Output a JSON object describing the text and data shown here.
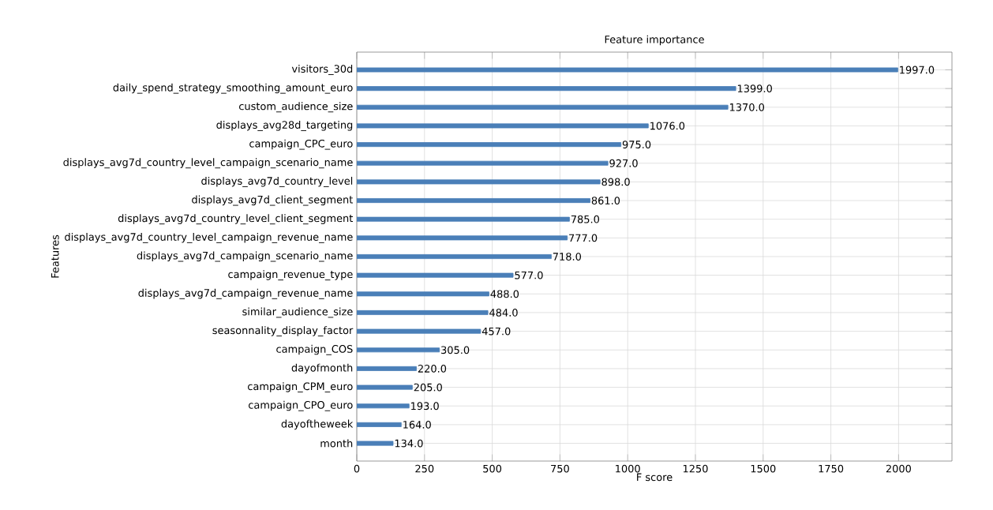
{
  "chart_data": {
    "type": "bar",
    "orientation": "horizontal",
    "title": "Feature importance",
    "xlabel": "F score",
    "ylabel": "Features",
    "categories": [
      "visitors_30d",
      "daily_spend_strategy_smoothing_amount_euro",
      "custom_audience_size",
      "displays_avg28d_targeting",
      "campaign_CPC_euro",
      "displays_avg7d_country_level_campaign_scenario_name",
      "displays_avg7d_country_level",
      "displays_avg7d_client_segment",
      "displays_avg7d_country_level_client_segment",
      "displays_avg7d_country_level_campaign_revenue_name",
      "displays_avg7d_campaign_scenario_name",
      "campaign_revenue_type",
      "displays_avg7d_campaign_revenue_name",
      "similar_audience_size",
      "seasonnality_display_factor",
      "campaign_COS",
      "dayofmonth",
      "campaign_CPM_euro",
      "campaign_CPO_euro",
      "dayoftheweek",
      "month"
    ],
    "values": [
      1997,
      1399,
      1370,
      1076,
      975,
      927,
      898,
      861,
      785,
      777,
      718,
      577,
      488,
      484,
      457,
      305,
      220,
      205,
      193,
      164,
      134
    ],
    "value_labels": [
      "1997.0",
      "1399.0",
      "1370.0",
      "1076.0",
      "975.0",
      "927.0",
      "898.0",
      "861.0",
      "785.0",
      "777.0",
      "718.0",
      "577.0",
      "488.0",
      "484.0",
      "457.0",
      "305.0",
      "220.0",
      "205.0",
      "193.0",
      "164.0",
      "134.0"
    ],
    "color": "#4a7fb8",
    "xlim": [
      0,
      2197
    ],
    "xticks": [
      0,
      250,
      500,
      750,
      1000,
      1250,
      1500,
      1750,
      2000
    ],
    "grid": true
  }
}
